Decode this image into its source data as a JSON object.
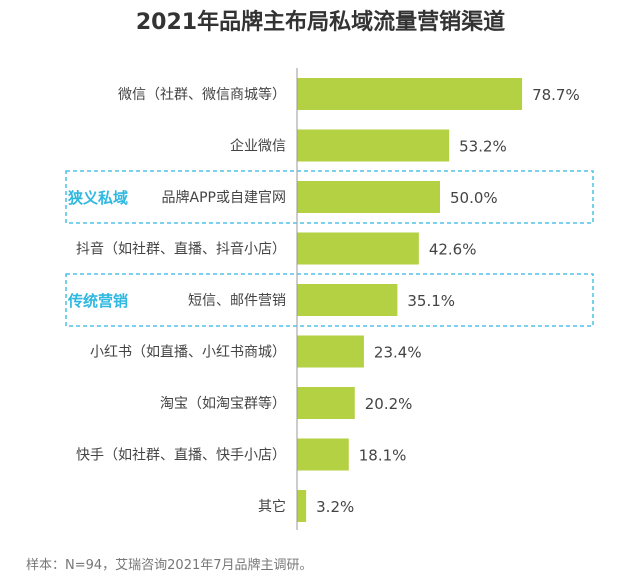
{
  "title": "2021年品牌主布局私域流量营销渠道",
  "footnote": "样本：N=94，艾瑞咨询2021年7月品牌主调研。",
  "chart_data": {
    "type": "bar",
    "orientation": "horizontal",
    "title": "2021年品牌主布局私域流量营销渠道",
    "categories": [
      "微信（社群、微信商城等）",
      "企业微信",
      "品牌APP或自建官网",
      "抖音（如社群、直播、抖音小店）",
      "短信、邮件营销",
      "小红书（如直播、小红书商城）",
      "淘宝（如淘宝群等）",
      "快手（如社群、直播、快手小店）",
      "其它"
    ],
    "values": [
      78.7,
      53.2,
      50.0,
      42.6,
      35.1,
      23.4,
      20.2,
      18.1,
      3.2
    ],
    "data_labels": [
      "78.7%",
      "53.2%",
      "50.0%",
      "42.6%",
      "35.1%",
      "23.4%",
      "20.2%",
      "18.1%",
      "3.2%"
    ],
    "annotations": [
      {
        "text": "狭义私域",
        "category_index": 2
      },
      {
        "text": "传统营销",
        "category_index": 4
      }
    ],
    "colors": {
      "bar": "#b3d143",
      "annotation": "#2fb8e0",
      "text": "#444444"
    }
  }
}
